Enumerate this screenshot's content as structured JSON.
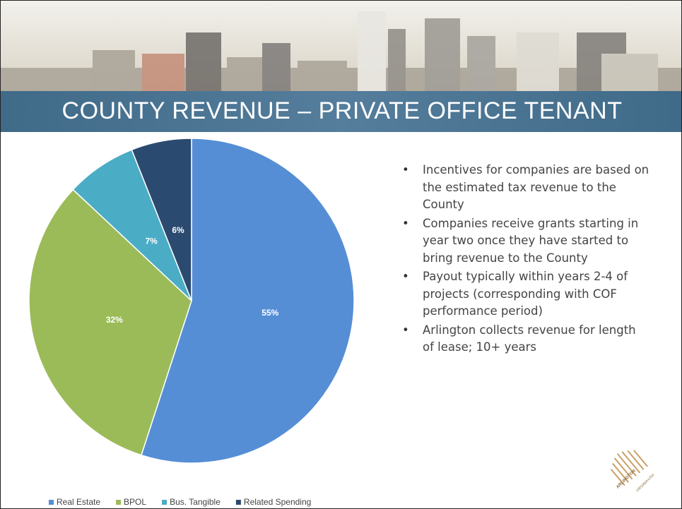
{
  "chart_data": {
    "type": "pie",
    "title": "COUNTY REVENUE – PRIVATE OFFICE TENANT",
    "categories": [
      "Real Estate",
      "BPOL",
      "Bus. Tangible",
      "Related Spending"
    ],
    "values": [
      55,
      32,
      7,
      6
    ],
    "value_labels": [
      "55%",
      "32%",
      "7%",
      "6%"
    ],
    "colors": [
      "#558ed5",
      "#9bbb59",
      "#4bacc6",
      "#2b4a6f"
    ],
    "legend": "bottom"
  },
  "bullets": [
    "Incentives for companies are based on the estimated tax revenue to the County",
    "Companies receive grants starting in year two once they have started to bring revenue to the County",
    "Payout typically within years 2-4 of projects (corresponding with COF performance period)",
    "Arlington collects revenue for length of lease; 10+ years"
  ],
  "logo": [
    "ARLINGTON",
    "VIRGINIA•USA"
  ]
}
